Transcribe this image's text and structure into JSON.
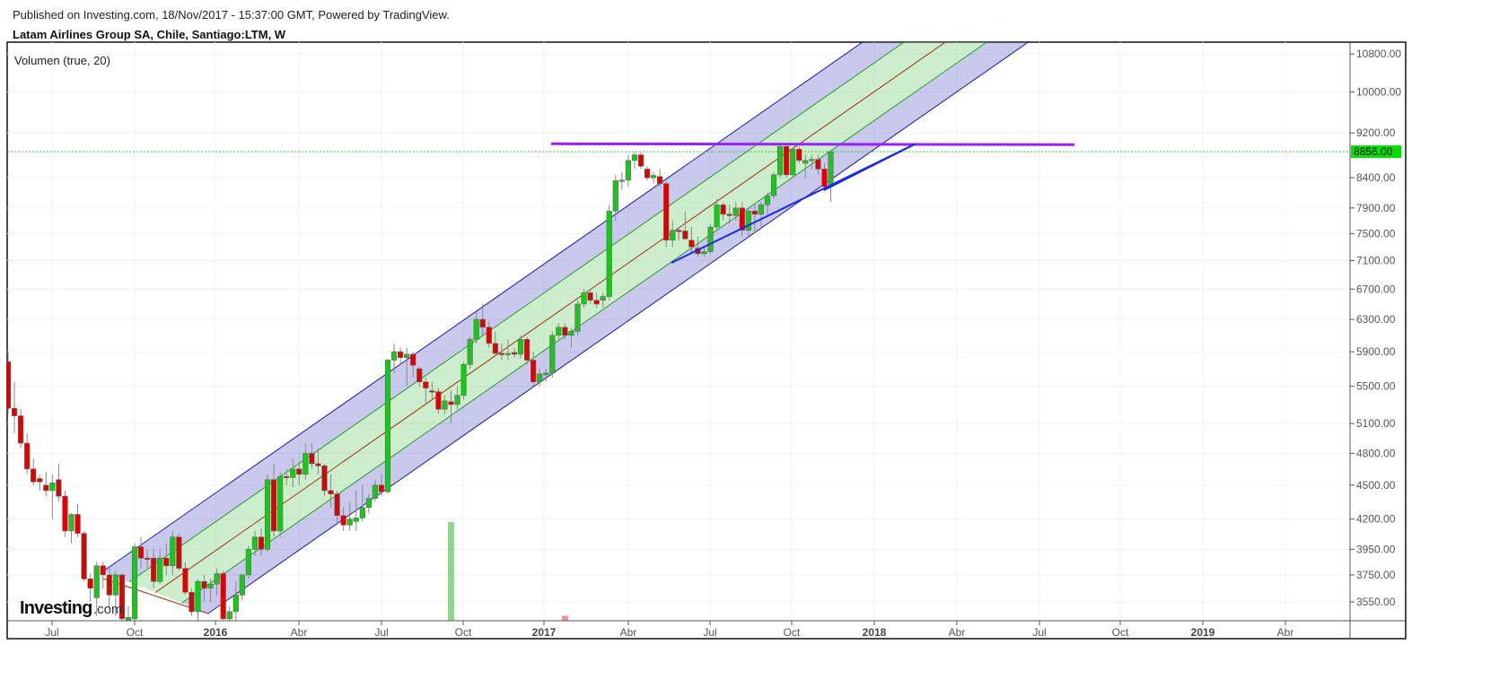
{
  "header": {
    "published": "Published on Investing.com, 18/Nov/2017 - 15:37:00 GMT, Powered by TradingView.",
    "symbol": "Latam Airlines Group SA, Chile, Santiago:LTM, W"
  },
  "indicator_label": "Volumen (true, 20)",
  "logo": {
    "brand": "Investing",
    "suffix": ".com"
  },
  "colors": {
    "up": "#18c818",
    "down": "#e00000",
    "channel_outer": "#1a1aa8",
    "channel_inner": "#2a9a2a",
    "channel_mid": "#a03010",
    "resistance": "#9b1fff",
    "trendline": "#1a2ae8",
    "last_price": "#00dd00"
  },
  "chart_data": {
    "type": "candlestick",
    "period": "W",
    "y_scale": "log",
    "ylim": [
      3430,
      11060
    ],
    "grid": true,
    "y_ticks": [
      "10800.00",
      "10000.00",
      "9200.00",
      "8400.00",
      "7900.00",
      "7500.00",
      "7100.00",
      "6700.00",
      "6300.00",
      "5900.00",
      "5500.00",
      "5100.00",
      "4800.00",
      "4500.00",
      "4200.00",
      "3950.00",
      "3750.00",
      "3550.00"
    ],
    "x_ticks": [
      {
        "label": "Jul",
        "year": false
      },
      {
        "label": "Oct",
        "year": false
      },
      {
        "label": "2016",
        "year": true
      },
      {
        "label": "Abr",
        "year": false
      },
      {
        "label": "Jul",
        "year": false
      },
      {
        "label": "Oct",
        "year": false
      },
      {
        "label": "2017",
        "year": true
      },
      {
        "label": "Abr",
        "year": false
      },
      {
        "label": "Jul",
        "year": false
      },
      {
        "label": "Oct",
        "year": false
      },
      {
        "label": "2018",
        "year": true
      },
      {
        "label": "Abr",
        "year": false
      },
      {
        "label": "Jul",
        "year": false
      },
      {
        "label": "Oct",
        "year": false
      },
      {
        "label": "2019",
        "year": true
      },
      {
        "label": "Abr",
        "year": false
      }
    ],
    "last_price": 8856,
    "last_price_label": "8856.00",
    "candles_ohlc": [
      [
        5780,
        5900,
        5200,
        5260
      ],
      [
        5260,
        5550,
        5000,
        5180
      ],
      [
        5180,
        5250,
        4850,
        4900
      ],
      [
        4900,
        5000,
        4600,
        4650
      ],
      [
        4650,
        4750,
        4500,
        4530
      ],
      [
        4560,
        4600,
        4450,
        4530
      ],
      [
        4500,
        4620,
        4400,
        4450
      ],
      [
        4450,
        4600,
        4200,
        4520
      ],
      [
        4550,
        4700,
        4350,
        4400
      ],
      [
        4400,
        4450,
        4050,
        4100
      ],
      [
        4100,
        4250,
        4000,
        4240
      ],
      [
        4240,
        4330,
        4050,
        4080
      ],
      [
        4080,
        4100,
        3700,
        3720
      ],
      [
        3720,
        3760,
        3550,
        3650
      ],
      [
        3580,
        3850,
        3450,
        3820
      ],
      [
        3820,
        3850,
        3650,
        3750
      ],
      [
        3750,
        3800,
        3500,
        3600
      ],
      [
        3600,
        3780,
        3450,
        3750
      ],
      [
        3750,
        3760,
        3380,
        3430
      ],
      [
        3420,
        3520,
        3380,
        3440
      ],
      [
        3430,
        4000,
        3400,
        3970
      ],
      [
        3970,
        4050,
        3800,
        3880
      ],
      [
        3880,
        3950,
        3800,
        3870
      ],
      [
        3880,
        3950,
        3650,
        3700
      ],
      [
        3700,
        3950,
        3680,
        3880
      ],
      [
        3880,
        4000,
        3750,
        3820
      ],
      [
        3820,
        4100,
        3750,
        4050
      ],
      [
        4050,
        4080,
        3780,
        3800
      ],
      [
        3800,
        3850,
        3600,
        3620
      ],
      [
        3620,
        3650,
        3450,
        3480
      ],
      [
        3480,
        3720,
        3400,
        3700
      ],
      [
        3700,
        3750,
        3550,
        3650
      ],
      [
        3650,
        3720,
        3550,
        3680
      ],
      [
        3680,
        3800,
        3600,
        3760
      ],
      [
        3760,
        3780,
        3400,
        3430
      ],
      [
        3430,
        3520,
        3380,
        3480
      ],
      [
        3480,
        3700,
        3420,
        3600
      ],
      [
        3600,
        3760,
        3560,
        3750
      ],
      [
        3750,
        3980,
        3720,
        3950
      ],
      [
        3950,
        4100,
        3900,
        4050
      ],
      [
        4050,
        4120,
        3900,
        3950
      ],
      [
        3950,
        4600,
        3930,
        4550
      ],
      [
        4550,
        4700,
        4050,
        4100
      ],
      [
        4100,
        4620,
        4050,
        4580
      ],
      [
        4580,
        4650,
        4500,
        4570
      ],
      [
        4570,
        4750,
        4480,
        4650
      ],
      [
        4650,
        4720,
        4500,
        4600
      ],
      [
        4600,
        4900,
        4550,
        4800
      ],
      [
        4800,
        4900,
        4650,
        4700
      ],
      [
        4700,
        4850,
        4600,
        4680
      ],
      [
        4680,
        4700,
        4400,
        4450
      ],
      [
        4450,
        4600,
        4300,
        4420
      ],
      [
        4420,
        4450,
        4150,
        4230
      ],
      [
        4230,
        4300,
        4100,
        4150
      ],
      [
        4150,
        4350,
        4100,
        4200
      ],
      [
        4180,
        4450,
        4100,
        4210
      ],
      [
        4210,
        4500,
        4180,
        4300
      ],
      [
        4300,
        4420,
        4250,
        4380
      ],
      [
        4380,
        4550,
        4350,
        4500
      ],
      [
        4500,
        4600,
        4400,
        4440
      ],
      [
        4440,
        5820,
        4420,
        5800
      ],
      [
        5800,
        6000,
        5650,
        5900
      ],
      [
        5900,
        5950,
        5750,
        5830
      ],
      [
        5830,
        5950,
        5500,
        5870
      ],
      [
        5870,
        5900,
        5600,
        5740
      ],
      [
        5700,
        5720,
        5500,
        5550
      ],
      [
        5550,
        5600,
        5300,
        5480
      ],
      [
        5450,
        5550,
        5350,
        5440
      ],
      [
        5440,
        5480,
        5200,
        5250
      ],
      [
        5250,
        5400,
        5200,
        5340
      ],
      [
        5330,
        5450,
        5100,
        5300
      ],
      [
        5300,
        5500,
        5250,
        5400
      ],
      [
        5400,
        5780,
        5350,
        5750
      ],
      [
        5750,
        6080,
        5700,
        6050
      ],
      [
        6050,
        6400,
        6000,
        6300
      ],
      [
        6300,
        6500,
        6100,
        6200
      ],
      [
        6200,
        6280,
        5950,
        6000
      ],
      [
        6000,
        6150,
        5850,
        5880
      ],
      [
        5880,
        6000,
        5800,
        5870
      ],
      [
        5870,
        6050,
        5800,
        5880
      ],
      [
        5890,
        5950,
        5830,
        5870
      ],
      [
        5870,
        6100,
        5820,
        6050
      ],
      [
        6050,
        6080,
        5750,
        5800
      ],
      [
        5800,
        5900,
        5500,
        5550
      ],
      [
        5550,
        5700,
        5500,
        5640
      ],
      [
        5630,
        5700,
        5550,
        5650
      ],
      [
        5650,
        6150,
        5600,
        6100
      ],
      [
        6100,
        6250,
        6050,
        6200
      ],
      [
        6200,
        6250,
        6050,
        6100
      ],
      [
        6100,
        6200,
        5950,
        6150
      ],
      [
        6150,
        6550,
        6100,
        6500
      ],
      [
        6500,
        6700,
        6450,
        6650
      ],
      [
        6650,
        6700,
        6500,
        6550
      ],
      [
        6550,
        6650,
        6450,
        6500
      ],
      [
        6550,
        6650,
        6450,
        6600
      ],
      [
        6600,
        7950,
        6550,
        7850
      ],
      [
        7850,
        8450,
        7700,
        8350
      ],
      [
        8350,
        8500,
        8200,
        8360
      ],
      [
        8360,
        8800,
        8250,
        8700
      ],
      [
        8700,
        8850,
        8550,
        8800
      ],
      [
        8800,
        8850,
        8550,
        8600
      ],
      [
        8550,
        8600,
        8350,
        8400
      ],
      [
        8400,
        8500,
        8300,
        8440
      ],
      [
        8420,
        8550,
        8250,
        8300
      ],
      [
        8300,
        8350,
        7300,
        7400
      ],
      [
        7400,
        7700,
        7300,
        7550
      ],
      [
        7550,
        7600,
        7400,
        7540
      ],
      [
        7540,
        7850,
        7400,
        7420
      ],
      [
        7400,
        7600,
        7200,
        7300
      ],
      [
        7280,
        7450,
        7150,
        7200
      ],
      [
        7200,
        7300,
        7150,
        7230
      ],
      [
        7230,
        7650,
        7200,
        7600
      ],
      [
        7600,
        8050,
        7550,
        7950
      ],
      [
        7950,
        8000,
        7700,
        7800
      ],
      [
        7800,
        7950,
        7650,
        7780
      ],
      [
        7780,
        8000,
        7700,
        7900
      ],
      [
        7900,
        8000,
        7450,
        7550
      ],
      [
        7550,
        7900,
        7450,
        7850
      ],
      [
        7850,
        7950,
        7500,
        7800
      ],
      [
        7800,
        8000,
        7600,
        7950
      ],
      [
        7950,
        8150,
        7800,
        8100
      ],
      [
        8100,
        8500,
        8050,
        8450
      ],
      [
        8450,
        9000,
        8400,
        8950
      ],
      [
        8950,
        8980,
        8400,
        8450
      ],
      [
        8450,
        8920,
        8400,
        8900
      ],
      [
        8900,
        8950,
        8650,
        8700
      ],
      [
        8650,
        8800,
        8400,
        8700
      ],
      [
        8700,
        8800,
        8550,
        8720
      ],
      [
        8720,
        8800,
        8450,
        8550
      ],
      [
        8550,
        8650,
        8200,
        8250
      ],
      [
        8250,
        8880,
        8000,
        8856
      ]
    ],
    "visible_volume_bars": [
      {
        "candle": 70,
        "relative": 1.0,
        "direction": "up"
      },
      {
        "candle": 88,
        "relative": 0.05,
        "direction": "down"
      }
    ],
    "drawings": {
      "regression_channel": {
        "upper_start": [
          15,
          3777
        ],
        "upper_end": [
          135,
          11060
        ],
        "lower_start": [
          31.6,
          3467
        ],
        "levels": [
          0,
          0.25,
          0.5,
          0.75,
          1
        ]
      },
      "resistance_line": {
        "from": [
          85.8,
          9000
        ],
        "to": [
          168.5,
          9000
        ]
      },
      "trendlines": [
        {
          "from": [
            104.8,
            7066
          ],
          "to": [
            143.4,
            9000
          ]
        },
        {
          "from": [
            128.9,
            8190
          ],
          "to": [
            143.4,
            9000
          ]
        }
      ]
    }
  }
}
